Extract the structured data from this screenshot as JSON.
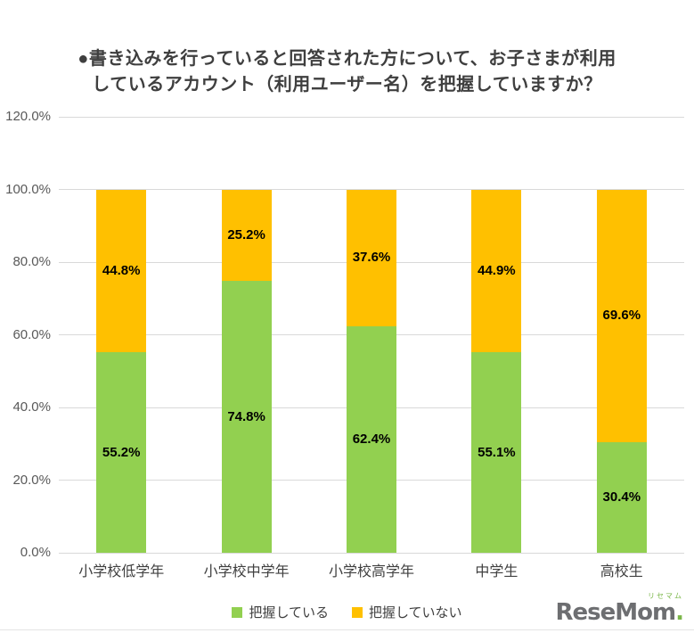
{
  "title": {
    "line1": "●書き込みを行っていると回答された方について、お子さまが利用",
    "line2": "しているアカウント（利用ユーザー名）を把握していますか？"
  },
  "chart_data": {
    "type": "bar",
    "stacked": true,
    "title": "●書き込みを行っていると回答された方について、お子さまが利用しているアカウント（利用ユーザー名）を把握していますか？",
    "categories": [
      "小学校低学年",
      "小学校中学年",
      "小学校高学年",
      "中学生",
      "高校生"
    ],
    "series": [
      {
        "name": "把握している",
        "color": "#92d050",
        "values": [
          55.2,
          74.8,
          62.4,
          55.1,
          30.4
        ]
      },
      {
        "name": "把握していない",
        "color": "#ffc000",
        "values": [
          44.8,
          25.2,
          37.6,
          44.9,
          69.6
        ]
      }
    ],
    "ylim": [
      0,
      120
    ],
    "ytick_step": 20,
    "yticks": [
      "0.0%",
      "20.0%",
      "40.0%",
      "60.0%",
      "80.0%",
      "100.0%",
      "120.0%"
    ],
    "grid": true,
    "legend_position": "bottom",
    "value_label_suffix": "%",
    "xlabel": "",
    "ylabel": ""
  },
  "logo": {
    "kana": "リセマム",
    "name": "ReseMom",
    "period": "."
  }
}
